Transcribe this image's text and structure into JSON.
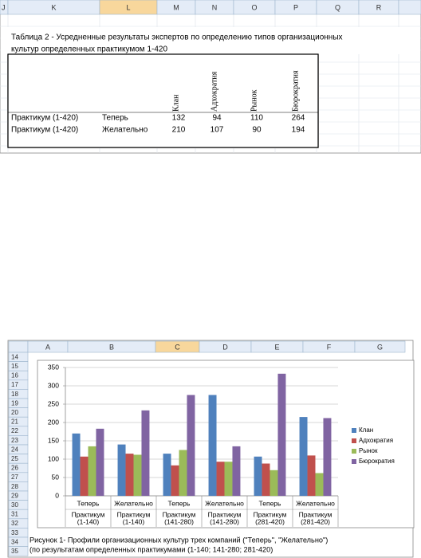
{
  "sheet_top": {
    "columns": [
      "J",
      "K",
      "L",
      "M",
      "N",
      "O",
      "P",
      "Q",
      "R"
    ],
    "title_lines": [
      "Таблица 2 - Усредненные результаты экспертов по определению типов организационных",
      "культур определенных практикумом 1-420"
    ],
    "table": {
      "headers": [
        "Клан",
        "Адхократия",
        "Рынок",
        "Бюрократия"
      ],
      "rows": [
        [
          "Практикум (1-420)",
          "Теперь",
          132,
          94,
          110,
          264
        ],
        [
          "Практикум (1-420)",
          "Желательно",
          210,
          107,
          90,
          194
        ]
      ]
    }
  },
  "sheet_bottom": {
    "columns": [
      "A",
      "B",
      "C",
      "D",
      "E",
      "F",
      "G"
    ],
    "row_numbers": [
      14,
      15,
      16,
      17,
      18,
      19,
      20,
      21,
      22,
      23,
      24,
      25,
      26,
      27,
      28,
      29,
      30,
      31,
      32,
      33,
      34,
      35
    ],
    "caption_lines": [
      "Рисунок 1- Профили организационных культур трех компаний (\"Теперь\", \"Желательно\")",
      "(по результатам определенных практикумами (1-140; 141-280; 281-420)"
    ]
  },
  "chart_data": {
    "type": "bar",
    "categories": [
      "Теперь",
      "Желательно",
      "Теперь",
      "Желательно",
      "Теперь",
      "Желательно"
    ],
    "category_groups": [
      [
        "Практикум",
        "(1-140)"
      ],
      [
        "Практикум",
        "(1-140)"
      ],
      [
        "Практикум",
        "(141-280)"
      ],
      [
        "Практикум",
        "(141-280)"
      ],
      [
        "Практикум",
        "(281-420)"
      ],
      [
        "Практикум",
        "(281-420)"
      ]
    ],
    "series": [
      {
        "name": "Клан",
        "color": "#4f81bd",
        "values": [
          170,
          140,
          115,
          275,
          107,
          215
        ]
      },
      {
        "name": "Адхократия",
        "color": "#c0504d",
        "values": [
          107,
          115,
          83,
          93,
          88,
          110
        ]
      },
      {
        "name": "Рынок",
        "color": "#9bbb59",
        "values": [
          135,
          112,
          125,
          93,
          70,
          62
        ]
      },
      {
        "name": "Бюрократия",
        "color": "#8064a2",
        "values": [
          183,
          233,
          275,
          135,
          333,
          212
        ]
      }
    ],
    "ylim": [
      0,
      350
    ],
    "yticks": [
      0,
      50,
      100,
      150,
      200,
      250,
      300,
      350
    ],
    "grid": true,
    "legend": "right"
  }
}
